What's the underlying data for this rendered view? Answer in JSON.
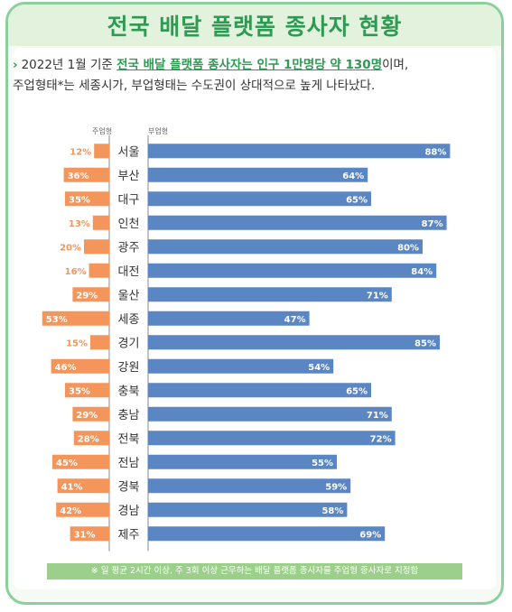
{
  "title": "전국 배달 플랫폼 종사자 현황",
  "summary": {
    "arrow": "›",
    "part1": "2022년 1월 기준 ",
    "highlight": "전국 배달 플랫폼 종사자는 인구 1만명당 약 130명",
    "part2": "이며,",
    "line2": "주업형태*는 세종시가, 부업형태는 수도권이 상대적으로 높게 나타났다."
  },
  "legend": {
    "left": "주업형",
    "right": "부업형"
  },
  "chart_data": {
    "type": "bar",
    "categories": [
      "서울",
      "부산",
      "대구",
      "인천",
      "광주",
      "대전",
      "울산",
      "세종",
      "경기",
      "강원",
      "충북",
      "충남",
      "전북",
      "전남",
      "경북",
      "경남",
      "제주"
    ],
    "series": [
      {
        "name": "주업형",
        "color": "#f4955b",
        "values": [
          12,
          36,
          35,
          13,
          20,
          16,
          29,
          53,
          15,
          46,
          35,
          29,
          28,
          45,
          41,
          42,
          31
        ]
      },
      {
        "name": "부업형",
        "color": "#5b86c4",
        "values": [
          88,
          64,
          65,
          87,
          80,
          84,
          71,
          47,
          85,
          54,
          65,
          71,
          72,
          55,
          59,
          58,
          69
        ]
      }
    ],
    "unit": "%"
  },
  "footnote": "※ 일 평균 2시간 이상, 주 3회 이상 근무하는 배달 플랫폼 종사자를 주업형 종사자로 지정함"
}
